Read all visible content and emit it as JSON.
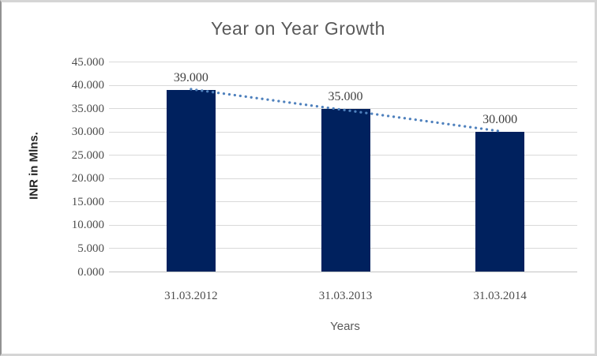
{
  "chart_data": {
    "type": "bar",
    "title": "Year on Year Growth",
    "xlabel": "Years",
    "ylabel": "INR in Mlns.",
    "categories": [
      "31.03.2012",
      "31.03.2013",
      "31.03.2014"
    ],
    "values": [
      39,
      35,
      30
    ],
    "data_labels": [
      "39.000",
      "35.000",
      "30.000"
    ],
    "ylim": [
      0,
      45
    ],
    "ytick_step": 5,
    "ytick_labels": [
      "0.000",
      "5.000",
      "10.000",
      "15.000",
      "20.000",
      "25.000",
      "30.000",
      "35.000",
      "40.000",
      "45.000"
    ],
    "grid": true,
    "legend": "none",
    "trendline": {
      "type": "linear",
      "style": "dotted"
    },
    "colors": {
      "bar": "#00215e",
      "trendline": "#4f81bd",
      "title_text": "#595959",
      "axis_title_text": "#262626",
      "xlabel_text": "#595959",
      "tick_text": "#4d4d4d",
      "data_label_text": "#404040",
      "gridline": "#d9d9d9",
      "axis_line": "#c3c3c3"
    }
  }
}
